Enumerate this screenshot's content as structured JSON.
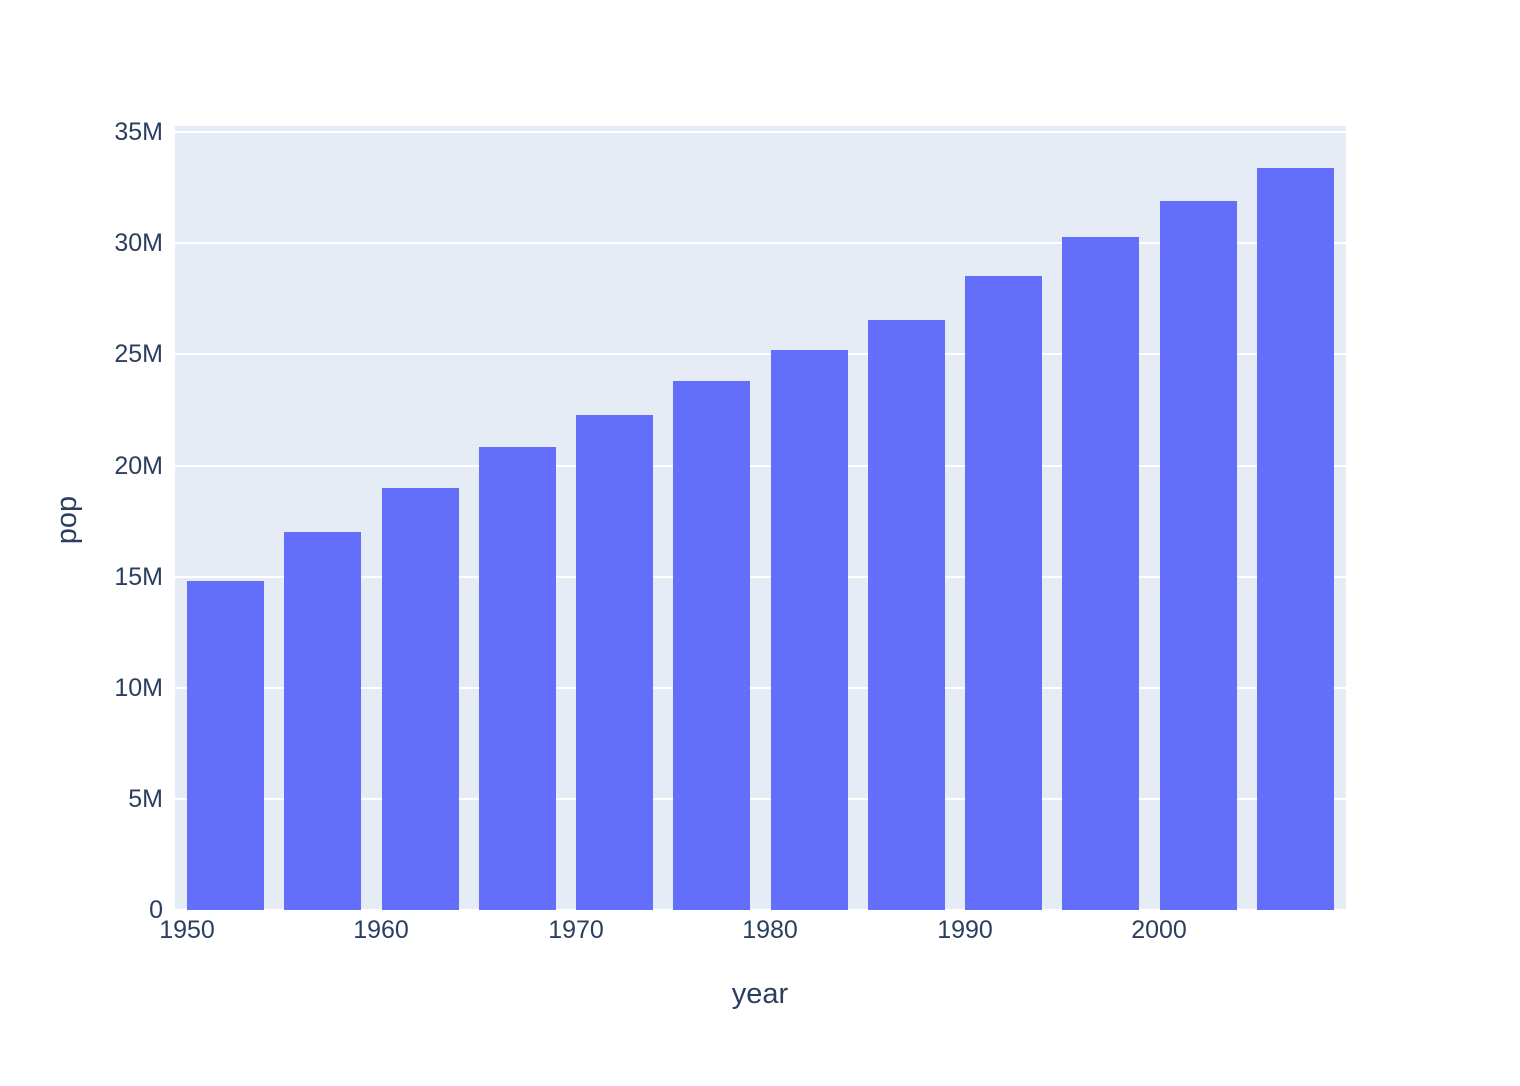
{
  "chart_data": {
    "type": "bar",
    "title": "",
    "xlabel": "year",
    "ylabel": "pop",
    "x": [
      1952,
      1957,
      1962,
      1967,
      1972,
      1977,
      1982,
      1987,
      1992,
      1997,
      2002,
      2007
    ],
    "values": [
      14785584,
      17010154,
      18985849,
      20819767,
      22284500,
      23796400,
      25201900,
      26549700,
      28523502,
      30305843,
      31902268,
      33390141
    ],
    "bar_width_years": 3.95,
    "xlim": [
      1949.4,
      2009.6
    ],
    "ylim": [
      0,
      35280000
    ],
    "xticks": [
      1950,
      1960,
      1970,
      1980,
      1990,
      2000
    ],
    "yticks": [
      {
        "value": 0,
        "label": "0"
      },
      {
        "value": 5000000,
        "label": "5M"
      },
      {
        "value": 10000000,
        "label": "10M"
      },
      {
        "value": 15000000,
        "label": "15M"
      },
      {
        "value": 20000000,
        "label": "20M"
      },
      {
        "value": 25000000,
        "label": "25M"
      },
      {
        "value": 30000000,
        "label": "30M"
      },
      {
        "value": 35000000,
        "label": "35M"
      }
    ],
    "grid": true,
    "legend": "none",
    "colors": {
      "bar": "#636efa",
      "plot_background": "#e5ecf6",
      "gridline": "#ffffff",
      "text": "#2a3f5f",
      "figure_background": "#ffffff"
    }
  }
}
